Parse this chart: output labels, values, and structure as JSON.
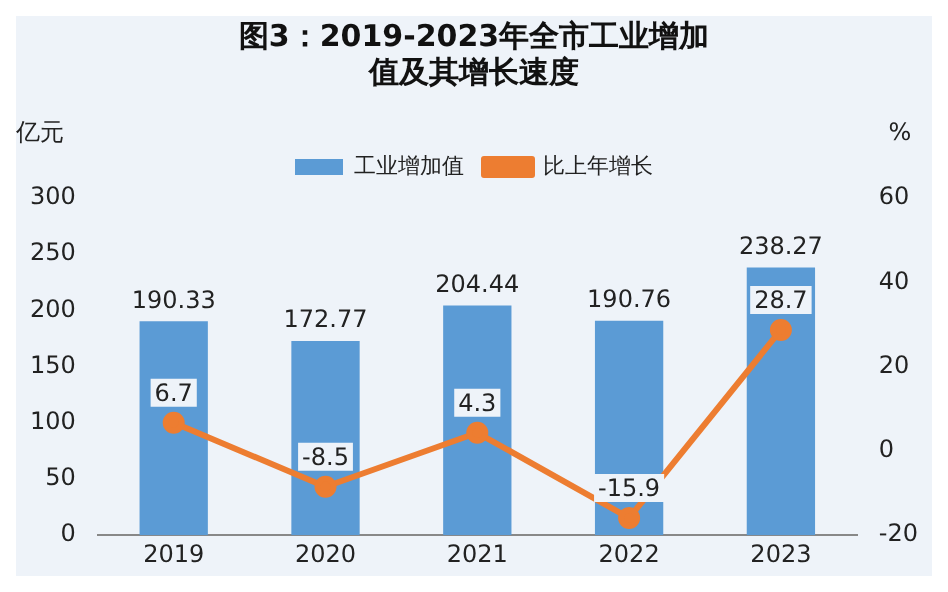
{
  "chart_data": {
    "type": "bar",
    "title": "图3：2019-2023年全市工业增加值及其增长速度",
    "ylabel": "亿元",
    "y2label": "%",
    "categories": [
      "2019",
      "2020",
      "2021",
      "2022",
      "2023"
    ],
    "series": [
      {
        "name": "工业增加值",
        "color": "#5b9bd5",
        "values": [
          190.33,
          172.77,
          204.44,
          190.76,
          238.27
        ]
      },
      {
        "name": "比上年增长",
        "type": "line",
        "axis": "y2",
        "color": "#ed7d31",
        "values": [
          6.7,
          -8.5,
          4.3,
          -15.9,
          28.7
        ]
      }
    ],
    "ylim": [
      0,
      300
    ],
    "yticks": [
      0,
      50,
      100,
      150,
      200,
      250,
      300
    ],
    "y2lim": [
      -20,
      60
    ],
    "y2ticks": [
      -20,
      0,
      20,
      40,
      60
    ],
    "grid": false,
    "legend": "top",
    "marker": "circle",
    "data_labels": true
  }
}
